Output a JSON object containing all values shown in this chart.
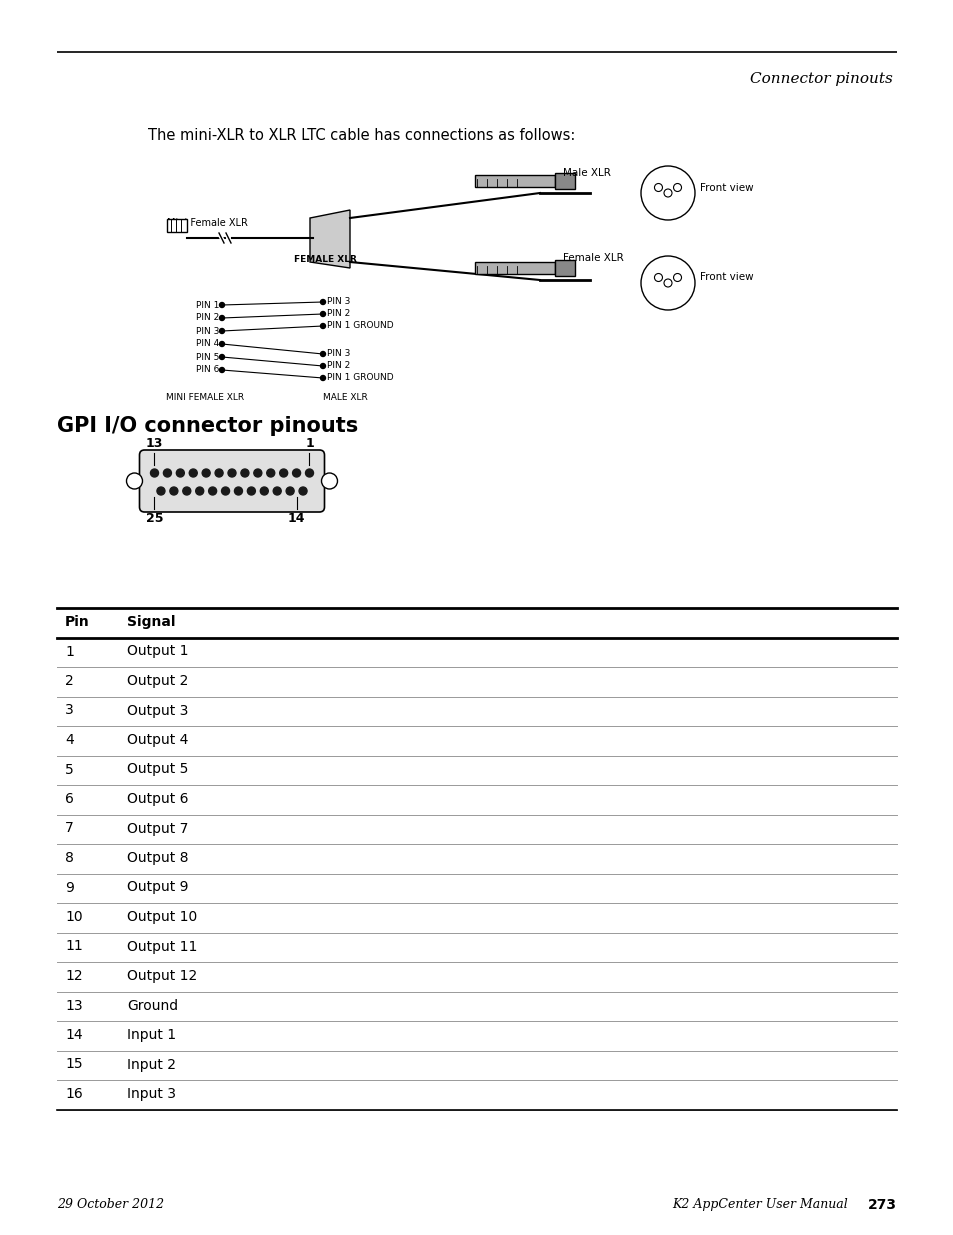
{
  "title_italic": "Connector pinouts",
  "intro_text": "The mini-XLR to XLR LTC cable has connections as follows:",
  "section_heading": "GPI I/O connector pinouts",
  "connector_labels": [
    "13",
    "1",
    "25",
    "14"
  ],
  "table_header": [
    "Pin",
    "Signal"
  ],
  "table_rows": [
    [
      "1",
      "Output 1"
    ],
    [
      "2",
      "Output 2"
    ],
    [
      "3",
      "Output 3"
    ],
    [
      "4",
      "Output 4"
    ],
    [
      "5",
      "Output 5"
    ],
    [
      "6",
      "Output 6"
    ],
    [
      "7",
      "Output 7"
    ],
    [
      "8",
      "Output 8"
    ],
    [
      "9",
      "Output 9"
    ],
    [
      "10",
      "Output 10"
    ],
    [
      "11",
      "Output 11"
    ],
    [
      "12",
      "Output 12"
    ],
    [
      "13",
      "Ground"
    ],
    [
      "14",
      "Input 1"
    ],
    [
      "15",
      "Input 2"
    ],
    [
      "16",
      "Input 3"
    ]
  ],
  "footer_left": "29 October 2012",
  "footer_right_italic": "K2 AppCenter User Manual",
  "footer_page": "273",
  "bg_color": "#ffffff",
  "text_color": "#000000",
  "line_color": "#000000",
  "gray_line_color": "#aaaaaa"
}
